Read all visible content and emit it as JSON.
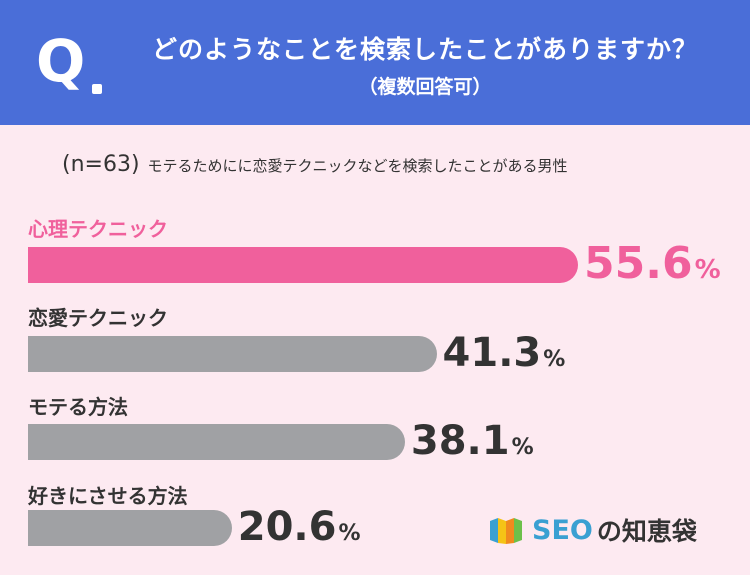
{
  "header": {
    "q_mark": "Q",
    "title": "どのようなことを検索したことがありますか？",
    "subtitle": "（複数回答可）"
  },
  "sample": {
    "n_label": "(n=63)",
    "description": "モテるためにに恋愛テクニックなどを検索したことがある男性"
  },
  "chart_data": {
    "type": "bar",
    "orientation": "horizontal",
    "categories": [
      "心理テクニック",
      "恋愛テクニック",
      "モテる方法",
      "好きにさせる方法"
    ],
    "values": [
      55.6,
      41.3,
      38.1,
      20.6
    ],
    "value_labels": [
      "55.6",
      "41.3",
      "38.1",
      "20.6"
    ],
    "unit": "%",
    "highlight_index": 0,
    "xlim": [
      0,
      100
    ]
  },
  "logo": {
    "brand": "SEO",
    "suffix": "の知恵袋"
  },
  "colors": {
    "header_bg": "#4a6ed8",
    "page_bg": "#fdeaf1",
    "highlight": "#f0609c",
    "bar": "#a0a1a4",
    "logo_blue": "#3aa0d2"
  }
}
